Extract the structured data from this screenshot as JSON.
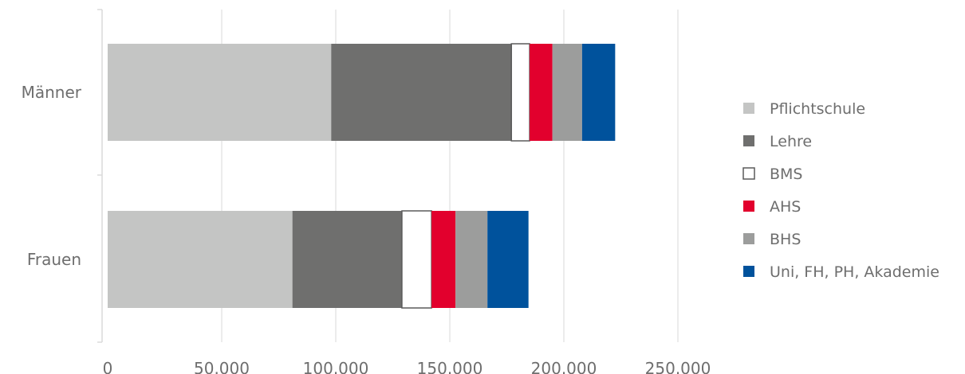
{
  "chart_data": {
    "type": "bar",
    "orientation": "horizontal",
    "stacked": true,
    "categories": [
      "Männer",
      "Frauen"
    ],
    "series": [
      {
        "name": "Pflichtschule",
        "color": "#c4c5c4",
        "values": [
          98000,
          81000
        ]
      },
      {
        "name": "Lehre",
        "color": "#6f6f6e",
        "values": [
          79000,
          48000
        ]
      },
      {
        "name": "BMS",
        "color": "#ffffff",
        "values": [
          8000,
          13000
        ]
      },
      {
        "name": "AHS",
        "color": "#e2002d",
        "values": [
          10000,
          10500
        ]
      },
      {
        "name": "BHS",
        "color": "#9c9d9c",
        "values": [
          13000,
          14000
        ]
      },
      {
        "name": "Uni, FH, PH, Akademie",
        "color": "#00529c",
        "values": [
          14500,
          18000
        ]
      }
    ],
    "xlim": [
      0,
      250000
    ],
    "xticks": [
      0,
      50000,
      100000,
      150000,
      200000,
      250000
    ],
    "xtick_labels": [
      "0",
      "50.000",
      "100.000",
      "150.000",
      "200.000",
      "250.000"
    ],
    "grid": true,
    "legend_position": "right"
  }
}
